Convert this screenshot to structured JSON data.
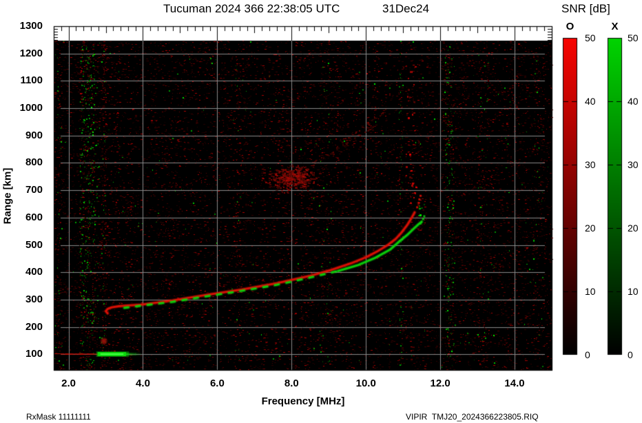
{
  "title": {
    "main": "Tucuman 2024 366 22:38:05 UTC",
    "date": "31Dec24"
  },
  "footer": {
    "left": "RxMask 11111111",
    "right": "VIPIR  TMJ20_2024366223805.RIQ"
  },
  "axes": {
    "x_label": "Frequency [MHz]",
    "y_label": "Range [km]",
    "x_tick_labels": [
      "2.0",
      "4.0",
      "6.0",
      "8.0",
      "10.0",
      "12.0",
      "14.0"
    ],
    "x_tick_values": [
      2,
      4,
      6,
      8,
      10,
      12,
      14
    ],
    "x_minor_step_mhz": 0.2,
    "x_range_mhz": [
      1.6,
      15.0
    ],
    "y_tick_labels": [
      "1300",
      "1200",
      "1100",
      "1000",
      "900",
      "800",
      "700",
      "600",
      "500",
      "400",
      "300",
      "200",
      "100"
    ],
    "y_tick_values": [
      1300,
      1200,
      1100,
      1000,
      900,
      800,
      700,
      600,
      500,
      400,
      300,
      200,
      100
    ],
    "y_minor_step_km": 10,
    "y_range_km": [
      43,
      1300
    ],
    "grid": "on"
  },
  "colorbar": {
    "title": "SNR [dB]",
    "min": 0,
    "max": 50,
    "tick_labels": [
      "50",
      "40",
      "30",
      "20",
      "10",
      "0"
    ],
    "tick_values": [
      50,
      40,
      30,
      20,
      10,
      0
    ],
    "bars": [
      {
        "mode": "O",
        "top_color": "#f80400",
        "bottom_color": "#000000"
      },
      {
        "mode": "X",
        "top_color": "#00d400",
        "bottom_color": "#000000"
      }
    ]
  },
  "chart_data": {
    "type": "heatmap",
    "description": "VIPIR ionosonde ionogram: SNR vs frequency and virtual range. O-mode echoes red, X-mode echoes green on black background with gray grid.",
    "background": "#000000",
    "grid_color": "#8a8a8a",
    "data_top_km": 1247,
    "summary": {
      "foF2_MHz": 11.45,
      "fxF2_MHz": 11.6,
      "f_min_trace_MHz": 3.0,
      "f2_min_virtual_range_km": 276,
      "e_layer_range_km": 100
    },
    "o_trace": {
      "color": "#e01105",
      "points": [
        [
          3.05,
          250
        ],
        [
          3.0,
          258
        ],
        [
          3.05,
          266
        ],
        [
          3.16,
          272
        ],
        [
          3.35,
          276
        ],
        [
          3.6,
          279
        ],
        [
          3.9,
          281
        ],
        [
          4.8,
          297
        ],
        [
          5.7,
          317
        ],
        [
          6.65,
          337
        ],
        [
          7.6,
          360
        ],
        [
          8.5,
          387
        ],
        [
          9.05,
          408
        ],
        [
          9.6,
          433
        ],
        [
          10.0,
          455
        ],
        [
          10.3,
          476
        ],
        [
          10.6,
          501
        ],
        [
          10.8,
          522
        ],
        [
          10.96,
          546
        ],
        [
          11.1,
          571
        ],
        [
          11.22,
          597
        ],
        [
          11.31,
          619
        ]
      ],
      "dotted_tip": [
        [
          11.37,
          639
        ],
        [
          11.41,
          655
        ],
        [
          11.43,
          668
        ],
        [
          11.46,
          681
        ]
      ]
    },
    "x_trace": {
      "color": "#0cd40c",
      "dashed_below_mhz": 9.3,
      "points": [
        [
          3.5,
          270
        ],
        [
          3.9,
          277
        ],
        [
          4.8,
          292
        ],
        [
          5.7,
          312
        ],
        [
          6.65,
          332
        ],
        [
          7.6,
          354
        ],
        [
          8.5,
          381
        ],
        [
          9.25,
          405
        ],
        [
          9.8,
          427
        ],
        [
          10.25,
          453
        ],
        [
          10.65,
          483
        ],
        [
          10.9,
          513
        ],
        [
          11.13,
          539
        ],
        [
          11.28,
          559
        ],
        [
          11.4,
          574
        ],
        [
          11.5,
          585
        ]
      ],
      "dotted_tip": [
        [
          11.53,
          596
        ],
        [
          11.56,
          606
        ]
      ]
    },
    "e_layer": {
      "o_segment": {
        "f": [
          1.62,
          2.78
        ],
        "range_km": 100,
        "color": "#b41005"
      },
      "x_segment": {
        "f": [
          2.78,
          3.55
        ],
        "range_km": 100,
        "fade_to_mhz": 3.95,
        "color": "#0cdc0c"
      },
      "oblique_blob": {
        "f_mhz": 2.95,
        "range_km": 149,
        "color": "#8c1410"
      }
    },
    "spread_echo": {
      "f_range": [
        7.15,
        8.85
      ],
      "range_range_km": [
        685,
        805
      ],
      "count": 380
    },
    "streaks": [
      {
        "f": [
          8.55,
          10.3
        ],
        "range_km": [
          795,
          940
        ],
        "count": 60
      },
      {
        "f": [
          9.3,
          10.6
        ],
        "range_km": [
          870,
          1000
        ],
        "count": 32
      }
    ],
    "cusp_dot_columns": [
      {
        "color": "red",
        "f_range": [
          11.08,
          11.34
        ],
        "range_range_km": [
          640,
          1160
        ],
        "count": 26
      },
      {
        "color": "green",
        "f_range": [
          11.42,
          11.6
        ],
        "range_range_km": [
          580,
          660
        ],
        "count": 8
      }
    ],
    "rfi_columns": [
      {
        "f_center": 1.72,
        "f_width": 0.2,
        "red": 120,
        "green": 25
      },
      {
        "f_center": 2.5,
        "f_width": 0.42,
        "red": 260,
        "green": 210
      },
      {
        "f_center": 2.95,
        "f_width": 0.12,
        "red": 160,
        "green": 30
      },
      {
        "f_center": 6.55,
        "f_width": 0.15,
        "red": 60,
        "green": 10
      },
      {
        "f_center": 8.9,
        "f_width": 0.35,
        "red": 80,
        "green": 30
      },
      {
        "f_center": 10.95,
        "f_width": 0.1,
        "red": 40,
        "green": 45
      },
      {
        "f_center": 12.25,
        "f_width": 0.22,
        "red": 120,
        "green": 110
      },
      {
        "f_center": 13.15,
        "f_width": 0.3,
        "red": 90,
        "green": 25
      },
      {
        "f_center": 14.65,
        "f_width": 0.3,
        "red": 110,
        "green": 20
      }
    ],
    "noise": {
      "red_speckles": 13000,
      "green_speckles": 320
    }
  }
}
